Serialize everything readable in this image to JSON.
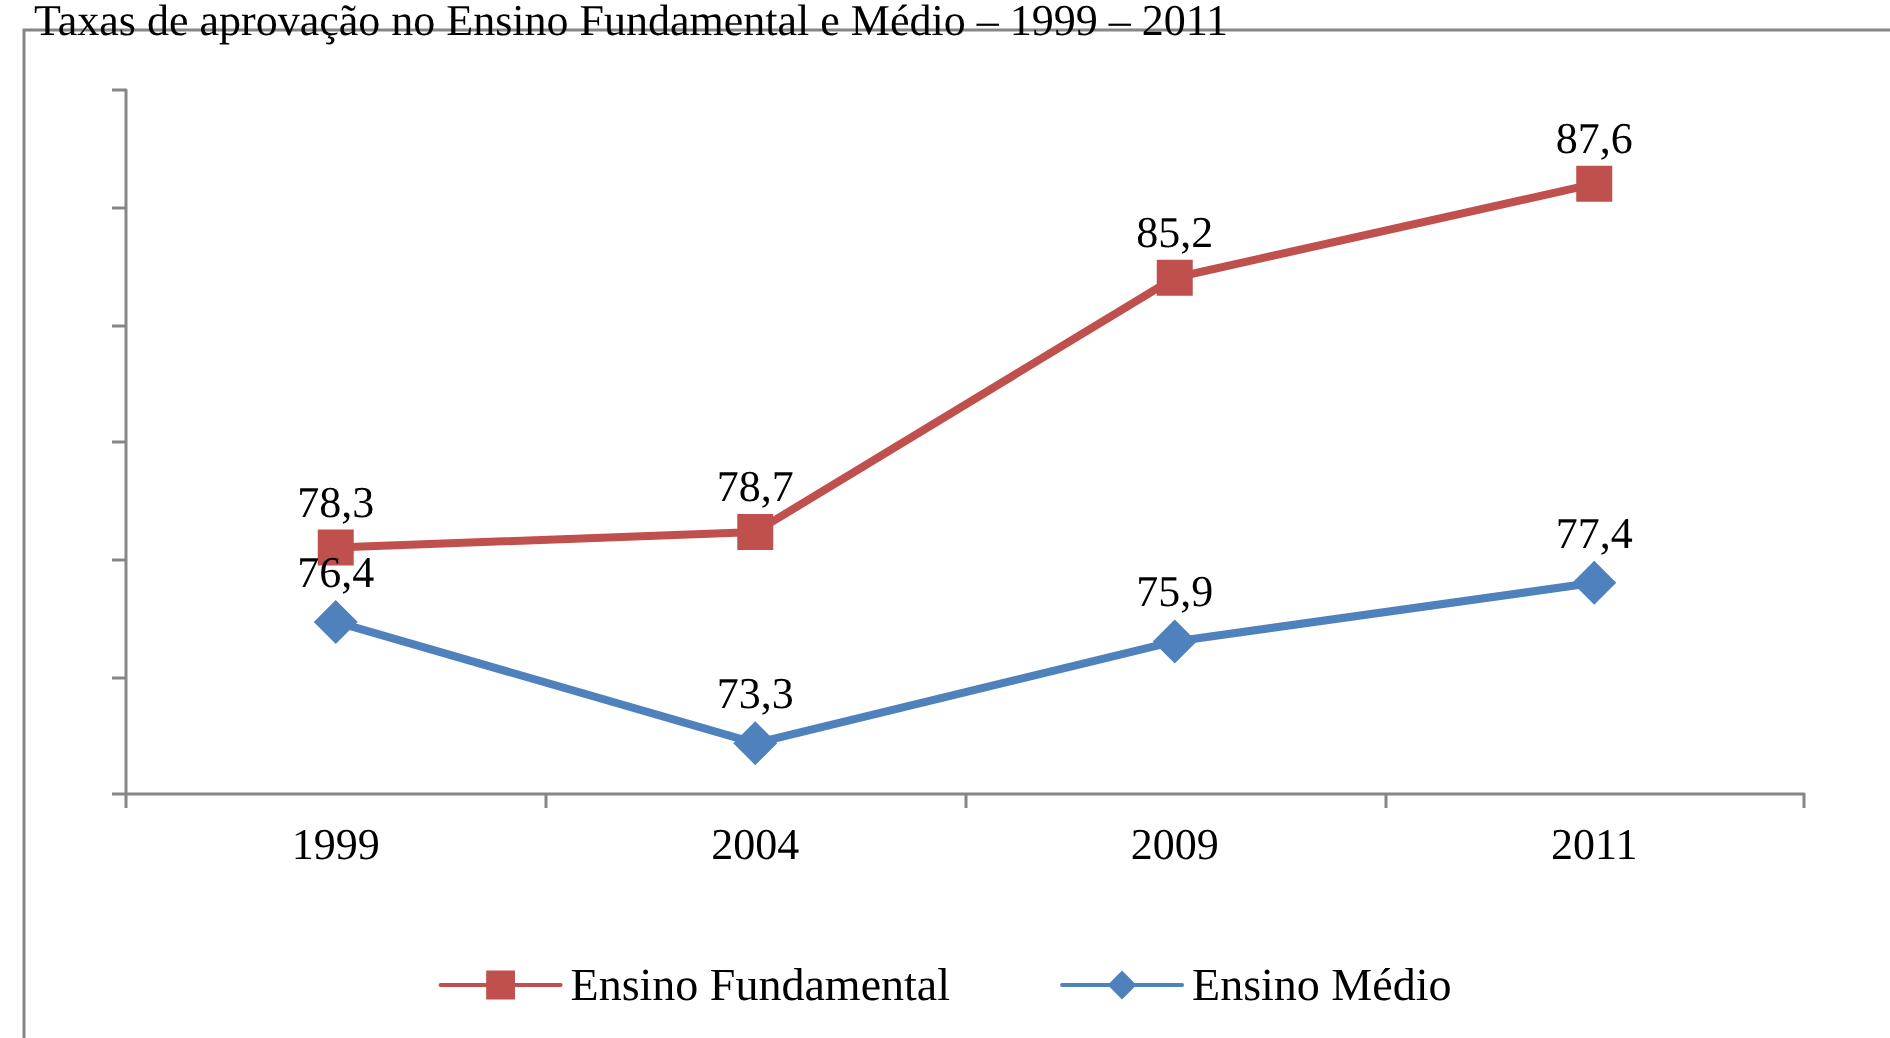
{
  "chart_data": {
    "type": "line",
    "title": "Taxas de aprovação no Ensino Fundamental e Médio – 1999 – 2011",
    "categories": [
      "1999",
      "2004",
      "2009",
      "2011"
    ],
    "series": [
      {
        "name": "Ensino Fundamental",
        "color": "#c0504d",
        "marker": "square",
        "values": [
          78.3,
          78.7,
          85.2,
          87.6
        ],
        "value_labels": [
          "78,3",
          "78,7",
          "85,2",
          "87,6"
        ]
      },
      {
        "name": "Ensino Médio",
        "color": "#4f81bd",
        "marker": "diamond",
        "values": [
          76.4,
          73.3,
          75.9,
          77.4
        ],
        "value_labels": [
          "76,4",
          "73,3",
          "75,9",
          "77,4"
        ]
      }
    ],
    "legend": "bottom",
    "grid": false,
    "tick_labels": "x",
    "line_style": "solid"
  }
}
